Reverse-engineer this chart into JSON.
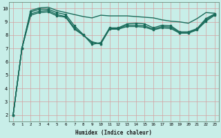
{
  "xlabel": "Humidex (Indice chaleur)",
  "background_color": "#c8eee8",
  "grid_color": "#d4a0a0",
  "line_color": "#1a6b5a",
  "xlim": [
    -0.5,
    23.5
  ],
  "ylim": [
    1.5,
    10.5
  ],
  "yticks": [
    2,
    3,
    4,
    5,
    6,
    7,
    8,
    9,
    10
  ],
  "xticks": [
    0,
    1,
    2,
    3,
    4,
    5,
    6,
    7,
    8,
    9,
    10,
    11,
    12,
    13,
    14,
    15,
    16,
    17,
    18,
    19,
    20,
    21,
    22,
    23
  ],
  "series": [
    {
      "x": [
        0,
        1,
        2,
        3,
        4,
        5,
        6,
        7,
        8,
        9,
        10,
        11,
        12,
        13,
        14,
        15,
        16,
        17,
        18,
        19,
        20,
        21,
        22,
        23
      ],
      "y": [
        2.0,
        7.0,
        9.85,
        10.05,
        10.1,
        9.85,
        9.7,
        9.55,
        9.4,
        9.3,
        9.5,
        9.45,
        9.45,
        9.45,
        9.4,
        9.35,
        9.3,
        9.15,
        9.05,
        9.0,
        8.9,
        9.25,
        9.7,
        9.65
      ],
      "marker": false,
      "linewidth": 1.0
    },
    {
      "x": [
        0,
        1,
        2,
        3,
        4,
        5,
        6,
        7,
        8,
        9,
        10,
        11,
        12,
        13,
        14,
        15,
        16,
        17,
        18,
        19,
        20,
        21,
        22,
        23
      ],
      "y": [
        2.0,
        7.0,
        9.75,
        9.95,
        9.95,
        9.7,
        9.55,
        8.7,
        8.05,
        7.3,
        7.45,
        8.55,
        8.55,
        8.85,
        8.9,
        8.85,
        8.55,
        8.75,
        8.7,
        8.25,
        8.25,
        8.5,
        9.25,
        9.6
      ],
      "marker": true,
      "linewidth": 1.0
    },
    {
      "x": [
        0,
        1,
        2,
        3,
        4,
        5,
        6,
        7,
        8,
        9,
        10,
        11,
        12,
        13,
        14,
        15,
        16,
        17,
        18,
        19,
        20,
        21,
        22,
        23
      ],
      "y": [
        2.0,
        7.0,
        9.6,
        9.8,
        9.85,
        9.55,
        9.4,
        8.55,
        8.0,
        7.45,
        7.35,
        8.5,
        8.5,
        8.75,
        8.75,
        8.7,
        8.45,
        8.65,
        8.6,
        8.2,
        8.2,
        8.45,
        9.15,
        9.55
      ],
      "marker": true,
      "linewidth": 1.0
    },
    {
      "x": [
        0,
        1,
        2,
        3,
        4,
        5,
        6,
        7,
        8,
        9,
        10,
        11,
        12,
        13,
        14,
        15,
        16,
        17,
        18,
        19,
        20,
        21,
        22,
        23
      ],
      "y": [
        2.0,
        7.0,
        9.5,
        9.7,
        9.75,
        9.45,
        9.35,
        8.45,
        8.0,
        7.5,
        7.35,
        8.45,
        8.45,
        8.65,
        8.65,
        8.6,
        8.4,
        8.55,
        8.5,
        8.15,
        8.15,
        8.4,
        9.05,
        9.5
      ],
      "marker": true,
      "linewidth": 1.0
    }
  ]
}
